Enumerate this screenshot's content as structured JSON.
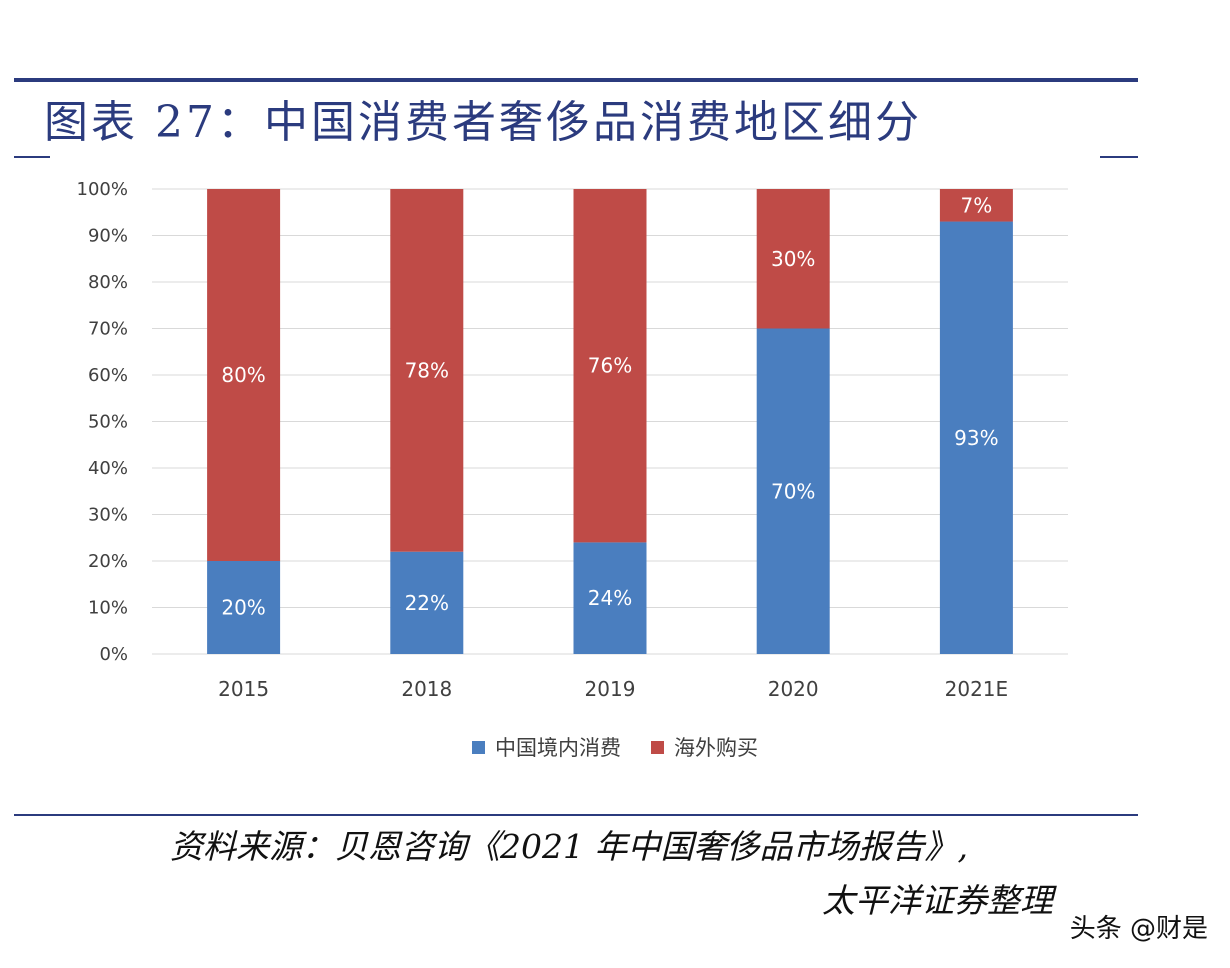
{
  "title": "图表 27：中国消费者奢侈品消费地区细分",
  "chart_data": {
    "type": "bar",
    "stacked": true,
    "categories": [
      "2015",
      "2018",
      "2019",
      "2020",
      "2021E"
    ],
    "series": [
      {
        "name": "中国境内消费",
        "values": [
          20,
          22,
          24,
          70,
          93
        ],
        "labels": [
          "20%",
          "22%",
          "24%",
          "70%",
          "93%"
        ],
        "color": "#4a7ebf"
      },
      {
        "name": "海外购买",
        "values": [
          80,
          78,
          76,
          30,
          7
        ],
        "labels": [
          "80%",
          "78%",
          "76%",
          "30%",
          "7%"
        ],
        "color": "#bf4b47"
      }
    ],
    "yticks": [
      "0%",
      "10%",
      "20%",
      "30%",
      "40%",
      "50%",
      "60%",
      "70%",
      "80%",
      "90%",
      "100%"
    ],
    "ylim": [
      0,
      100
    ],
    "grid": true,
    "legend_position": "bottom"
  },
  "source_line1": "资料来源：贝恩咨询《2021 年中国奢侈品市场报告》,",
  "source_line2": "太平洋证券整理",
  "watermark": "头条 @财是",
  "colors": {
    "rule": "#2b3b7e",
    "grid": "#d9d9d9"
  }
}
